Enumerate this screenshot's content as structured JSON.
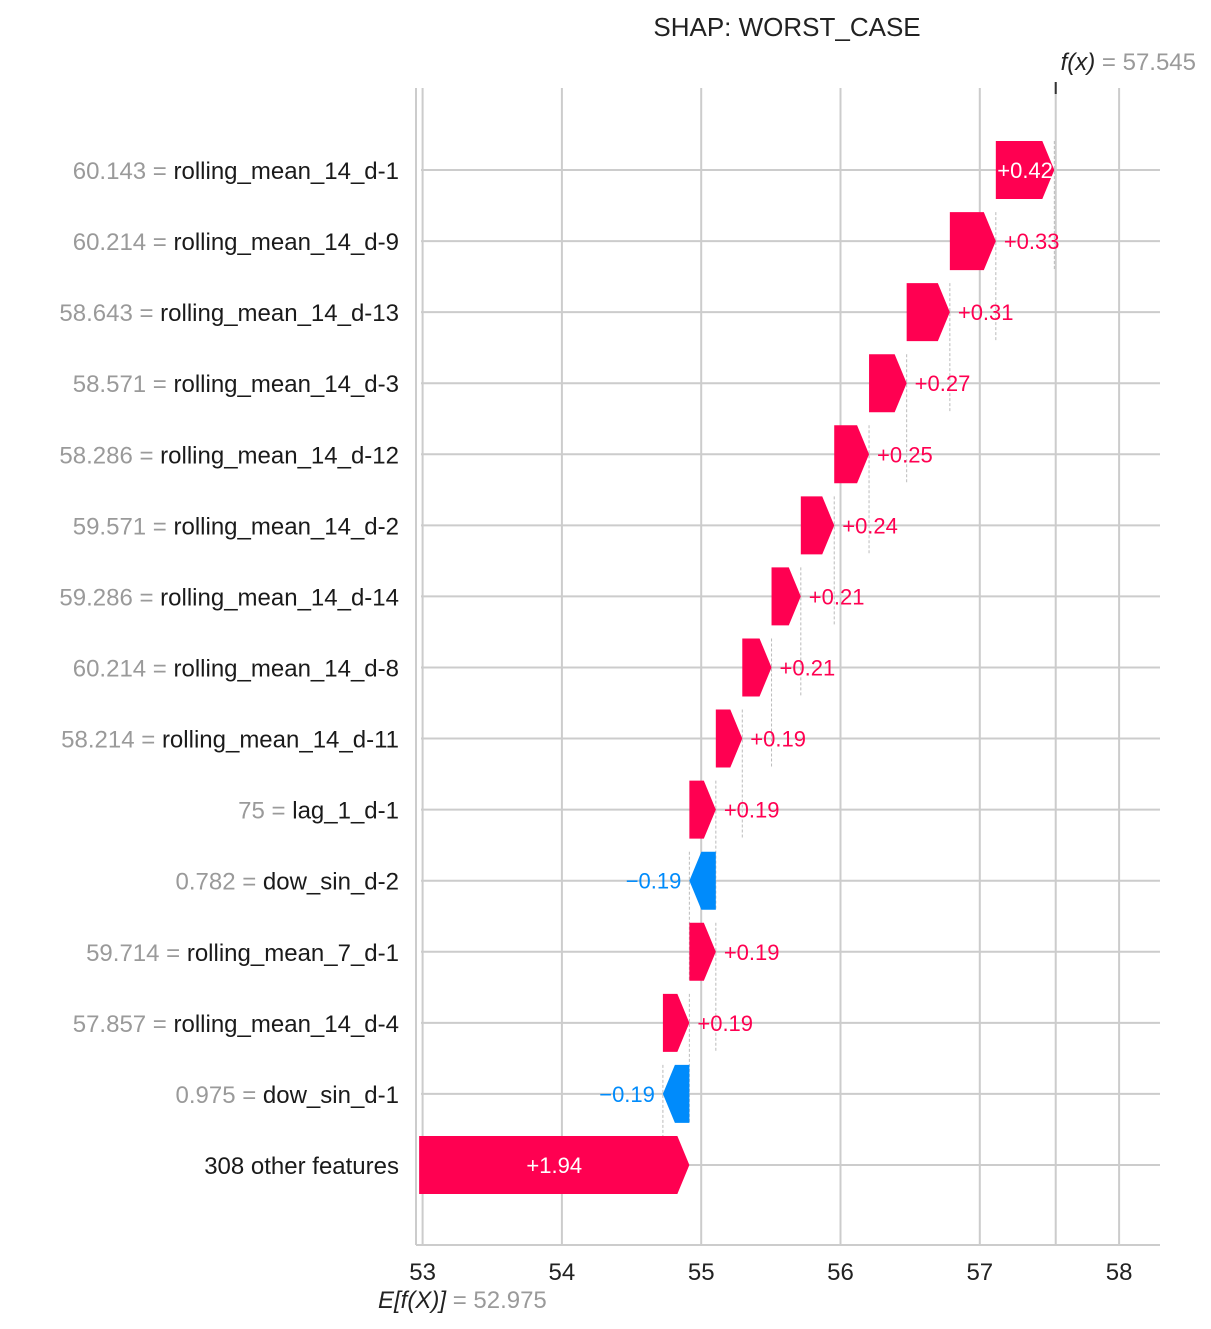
{
  "chart_data": {
    "type": "waterfall",
    "title": "SHAP: WORST_CASE",
    "base_value": 52.975,
    "base_label_prefix": "E[f(X)]",
    "base_label_value": "= 52.975",
    "output_value": 57.545,
    "output_label_prefix": "f(x)",
    "output_label_value": "= 57.545",
    "xlim": [
      52.98,
      58.3
    ],
    "xticks": [
      53,
      54,
      55,
      56,
      57,
      58
    ],
    "xtick_labels": [
      "53",
      "54",
      "55",
      "56",
      "57",
      "58"
    ],
    "colors": {
      "positive": "#ff0051",
      "negative": "#008bfb",
      "grid": "#cccccc",
      "value_text": "#9a9a9a"
    },
    "features": [
      {
        "value": "60.143",
        "name": "rolling_mean_14_d-1",
        "shap": 0.42,
        "label": "+0.42",
        "label_inside": true
      },
      {
        "value": "60.214",
        "name": "rolling_mean_14_d-9",
        "shap": 0.33,
        "label": "+0.33",
        "label_inside": false
      },
      {
        "value": "58.643",
        "name": "rolling_mean_14_d-13",
        "shap": 0.31,
        "label": "+0.31",
        "label_inside": false
      },
      {
        "value": "58.571",
        "name": "rolling_mean_14_d-3",
        "shap": 0.27,
        "label": "+0.27",
        "label_inside": false
      },
      {
        "value": "58.286",
        "name": "rolling_mean_14_d-12",
        "shap": 0.25,
        "label": "+0.25",
        "label_inside": false
      },
      {
        "value": "59.571",
        "name": "rolling_mean_14_d-2",
        "shap": 0.24,
        "label": "+0.24",
        "label_inside": false
      },
      {
        "value": "59.286",
        "name": "rolling_mean_14_d-14",
        "shap": 0.21,
        "label": "+0.21",
        "label_inside": false
      },
      {
        "value": "60.214",
        "name": "rolling_mean_14_d-8",
        "shap": 0.21,
        "label": "+0.21",
        "label_inside": false
      },
      {
        "value": "58.214",
        "name": "rolling_mean_14_d-11",
        "shap": 0.19,
        "label": "+0.19",
        "label_inside": false
      },
      {
        "value": "75",
        "name": "lag_1_d-1",
        "shap": 0.19,
        "label": "+0.19",
        "label_inside": false
      },
      {
        "value": "0.782",
        "name": "dow_sin_d-2",
        "shap": -0.19,
        "label": "−0.19",
        "label_inside": false
      },
      {
        "value": "59.714",
        "name": "rolling_mean_7_d-1",
        "shap": 0.19,
        "label": "+0.19",
        "label_inside": false
      },
      {
        "value": "57.857",
        "name": "rolling_mean_14_d-4",
        "shap": 0.19,
        "label": "+0.19",
        "label_inside": false
      },
      {
        "value": "0.975",
        "name": "dow_sin_d-1",
        "shap": -0.19,
        "label": "−0.19",
        "label_inside": false
      },
      {
        "value": "",
        "name": "308 other features",
        "shap": 1.94,
        "label": "+1.94",
        "label_inside": true
      }
    ]
  }
}
